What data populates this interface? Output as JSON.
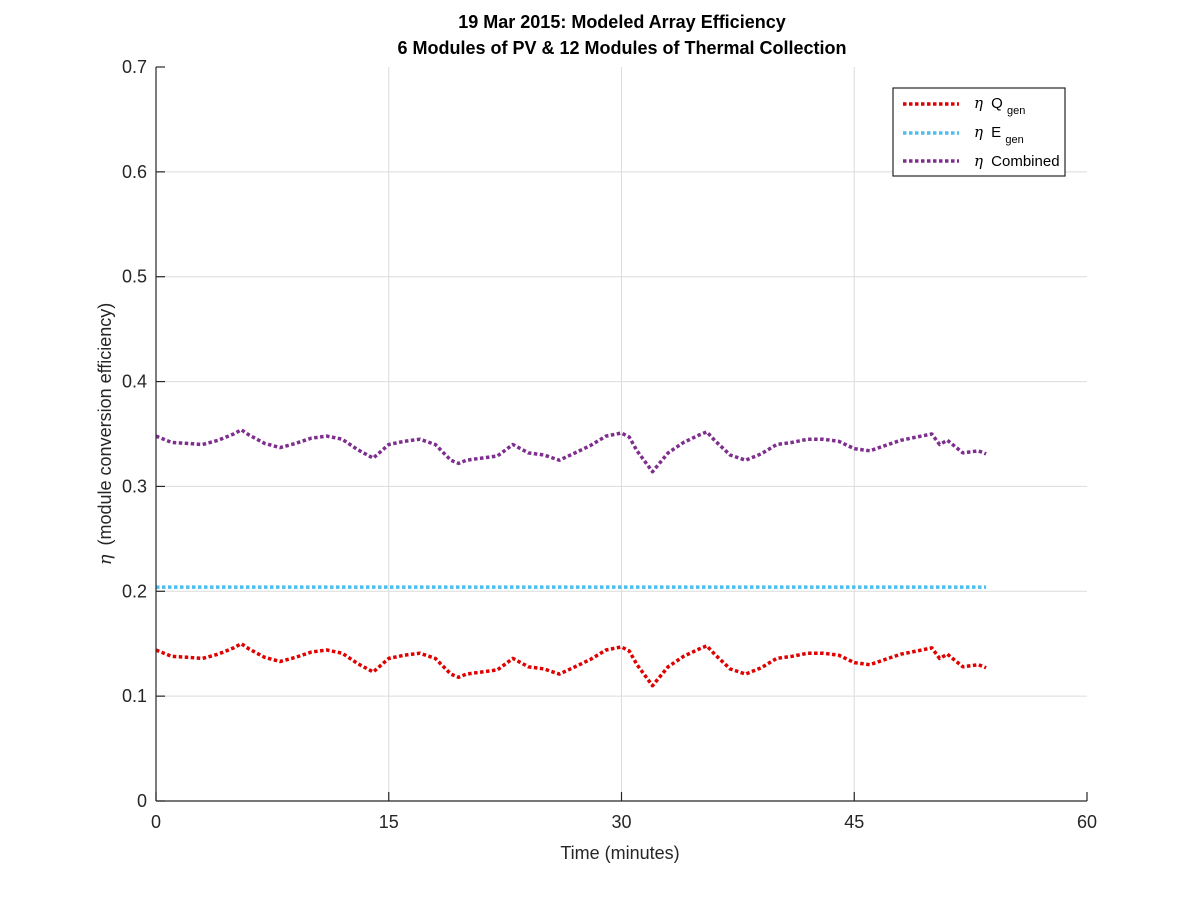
{
  "chart_data": {
    "type": "line",
    "title": "19 Mar 2015: Modeled Array Efficiency",
    "subtitle": "6 Modules of PV & 12 Modules of Thermal Collection",
    "xlabel": "Time (minutes)",
    "ylabel_symbol": "η",
    "ylabel": "(module conversion efficiency)",
    "xlim": [
      0,
      60
    ],
    "ylim": [
      0,
      0.7
    ],
    "xticks": [
      0,
      15,
      30,
      45,
      60
    ],
    "xtick_labels": [
      "0",
      "15",
      "30",
      "45",
      "60"
    ],
    "yticks": [
      0,
      0.1,
      0.2,
      0.3,
      0.4,
      0.5,
      0.6,
      0.7
    ],
    "ytick_labels": [
      "0",
      "0.1",
      "0.2",
      "0.3",
      "0.4",
      "0.5",
      "0.6",
      "0.7"
    ],
    "grid": true,
    "legend_position": "top-right",
    "x": [
      0,
      1,
      2,
      3,
      4,
      5,
      5.5,
      6,
      7,
      8,
      9,
      10,
      11,
      12,
      13,
      14,
      15,
      16,
      17,
      18,
      19,
      19.5,
      20,
      21,
      22,
      23,
      24,
      25,
      26,
      27,
      28,
      29,
      30,
      30.5,
      31,
      32,
      33,
      34,
      35,
      35.5,
      36,
      37,
      38,
      39,
      40,
      41,
      42,
      43,
      44,
      45,
      46,
      47,
      48,
      49,
      50,
      50.5,
      51,
      52,
      53,
      53.5
    ],
    "series": [
      {
        "name_symbol": "η",
        "name_main": "Q",
        "name_sub": "gen",
        "color": "#e00000",
        "values": [
          0.144,
          0.138,
          0.137,
          0.136,
          0.14,
          0.146,
          0.15,
          0.145,
          0.137,
          0.133,
          0.137,
          0.142,
          0.144,
          0.141,
          0.131,
          0.123,
          0.136,
          0.139,
          0.141,
          0.136,
          0.121,
          0.118,
          0.121,
          0.123,
          0.125,
          0.136,
          0.128,
          0.126,
          0.121,
          0.128,
          0.135,
          0.144,
          0.147,
          0.143,
          0.13,
          0.11,
          0.128,
          0.138,
          0.145,
          0.148,
          0.14,
          0.126,
          0.121,
          0.127,
          0.136,
          0.138,
          0.141,
          0.141,
          0.139,
          0.132,
          0.13,
          0.135,
          0.14,
          0.143,
          0.146,
          0.136,
          0.14,
          0.128,
          0.13,
          0.127
        ]
      },
      {
        "name_symbol": "η",
        "name_main": "E",
        "name_sub": "gen",
        "color": "#4dbeee",
        "values": [
          0.204,
          0.204,
          0.204,
          0.204,
          0.204,
          0.204,
          0.204,
          0.204,
          0.204,
          0.204,
          0.204,
          0.204,
          0.204,
          0.204,
          0.204,
          0.204,
          0.204,
          0.204,
          0.204,
          0.204,
          0.204,
          0.204,
          0.204,
          0.204,
          0.204,
          0.204,
          0.204,
          0.204,
          0.204,
          0.204,
          0.204,
          0.204,
          0.204,
          0.204,
          0.204,
          0.204,
          0.204,
          0.204,
          0.204,
          0.204,
          0.204,
          0.204,
          0.204,
          0.204,
          0.204,
          0.204,
          0.204,
          0.204,
          0.204,
          0.204,
          0.204,
          0.204,
          0.204,
          0.204,
          0.204,
          0.204,
          0.204,
          0.204,
          0.204,
          0.204
        ]
      },
      {
        "name_symbol": "η",
        "name_main": "Combined",
        "name_sub": "",
        "color": "#7e2f8e",
        "values": [
          0.348,
          0.342,
          0.341,
          0.34,
          0.344,
          0.35,
          0.354,
          0.349,
          0.341,
          0.337,
          0.341,
          0.346,
          0.348,
          0.345,
          0.335,
          0.327,
          0.34,
          0.343,
          0.345,
          0.34,
          0.325,
          0.322,
          0.325,
          0.327,
          0.329,
          0.34,
          0.332,
          0.33,
          0.325,
          0.332,
          0.339,
          0.348,
          0.351,
          0.347,
          0.334,
          0.314,
          0.332,
          0.342,
          0.349,
          0.352,
          0.344,
          0.33,
          0.325,
          0.331,
          0.34,
          0.342,
          0.345,
          0.345,
          0.343,
          0.336,
          0.334,
          0.339,
          0.344,
          0.347,
          0.35,
          0.34,
          0.344,
          0.332,
          0.334,
          0.331
        ]
      }
    ]
  }
}
